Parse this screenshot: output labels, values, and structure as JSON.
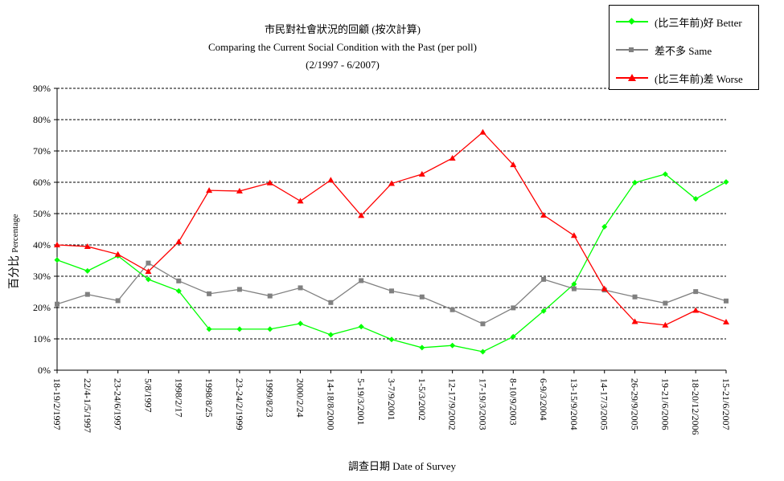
{
  "chart_data": {
    "type": "line",
    "title": "市民對社會狀況的回顧 (按次計算)",
    "subtitle": "Comparing the Current Social Condition with the Past  (per poll)",
    "period": "(2/1997 - 6/2007)",
    "xlabel": "調查日期 Date of Survey",
    "ylabel_zh": "百分比",
    "ylabel_en": "Percentage",
    "ylim": [
      0,
      90
    ],
    "yticks": [
      "0%",
      "10%",
      "20%",
      "30%",
      "40%",
      "50%",
      "60%",
      "70%",
      "80%",
      "90%"
    ],
    "grid": true,
    "legend_position": "top-right",
    "categories": [
      "18-19/2/1997",
      "22/4-1/5/1997",
      "23-24/6/1997",
      "5/8/1997",
      "1998/2/17",
      "1998/8/25",
      "23-24/2/1999",
      "1999/8/23",
      "2000/2/24",
      "14-18/8/2000",
      "5-19/3/2001",
      "3-7/9/2001",
      "1-5/3/2002",
      "12-17/9/2002",
      "17-19/3/2003",
      "8-10/9/2003",
      "6-9/3/2004",
      "13-15/9/2004",
      "14-17/3/2005",
      "26-29/9/2005",
      "19-21/6/2006",
      "18-20/12/2006",
      "15-21/6/2007"
    ],
    "series": [
      {
        "name": "(比三年前)好 Better",
        "color": "#00ff00",
        "marker": "diamond",
        "values": [
          35.2,
          31.7,
          36.5,
          29.0,
          25.3,
          13.1,
          13.1,
          13.1,
          14.9,
          11.3,
          13.9,
          9.8,
          7.2,
          7.9,
          5.9,
          10.7,
          18.9,
          27.5,
          45.8,
          59.9,
          62.6,
          54.7,
          60.1
        ]
      },
      {
        "name": "差不多 Same",
        "color": "#808080",
        "marker": "square",
        "values": [
          21.1,
          24.2,
          22.2,
          34.2,
          28.5,
          24.4,
          25.8,
          23.7,
          26.3,
          21.6,
          28.6,
          25.3,
          23.4,
          19.3,
          14.8,
          19.9,
          29.0,
          26.0,
          25.6,
          23.4,
          21.4,
          25.1,
          22.1
        ]
      },
      {
        "name": "(比三年前)差 Worse",
        "color": "#ff0000",
        "marker": "triangle",
        "values": [
          40.0,
          39.5,
          37.0,
          31.5,
          41.0,
          57.4,
          57.2,
          59.8,
          54.0,
          60.7,
          49.4,
          59.6,
          62.6,
          67.7,
          76.0,
          65.6,
          49.5,
          43.0,
          26.0,
          15.5,
          14.4,
          19.1,
          15.4
        ]
      }
    ]
  }
}
